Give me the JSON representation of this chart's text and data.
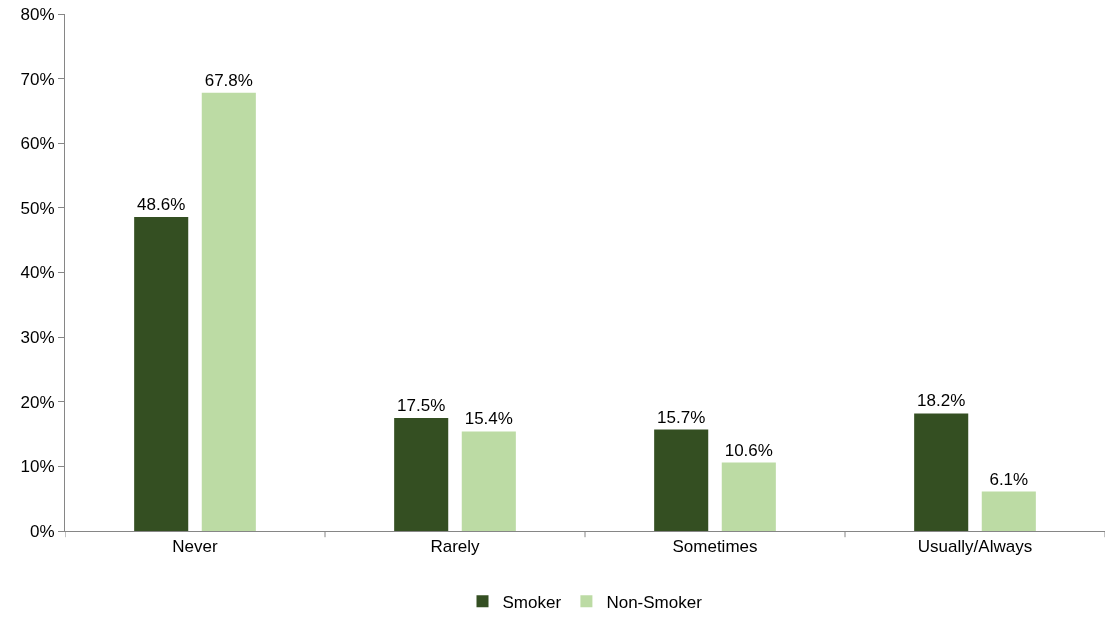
{
  "chart_data": {
    "type": "bar",
    "categories": [
      "Never",
      "Rarely",
      "Sometimes",
      "Usually/Always"
    ],
    "series": [
      {
        "name": "Smoker",
        "color": "#344f22",
        "values": [
          48.6,
          17.5,
          15.7,
          18.2
        ],
        "value_labels": [
          "48.6%",
          "17.5%",
          "15.7%",
          "18.2%"
        ]
      },
      {
        "name": "Non-Smoker",
        "color": "#bcdba4",
        "values": [
          67.8,
          15.4,
          10.6,
          6.1
        ],
        "value_labels": [
          "67.8%",
          "15.4%",
          "10.6%",
          "6.1%"
        ]
      }
    ],
    "ylim": [
      0,
      80
    ],
    "yticks": [
      {
        "value": 0,
        "label": "0%"
      },
      {
        "value": 10,
        "label": "10%"
      },
      {
        "value": 20,
        "label": "20%"
      },
      {
        "value": 30,
        "label": "30%"
      },
      {
        "value": 40,
        "label": "40%"
      },
      {
        "value": 50,
        "label": "50%"
      },
      {
        "value": 60,
        "label": "60%"
      },
      {
        "value": 70,
        "label": "70%"
      },
      {
        "value": 80,
        "label": "80%"
      }
    ],
    "legend": "bottom"
  }
}
